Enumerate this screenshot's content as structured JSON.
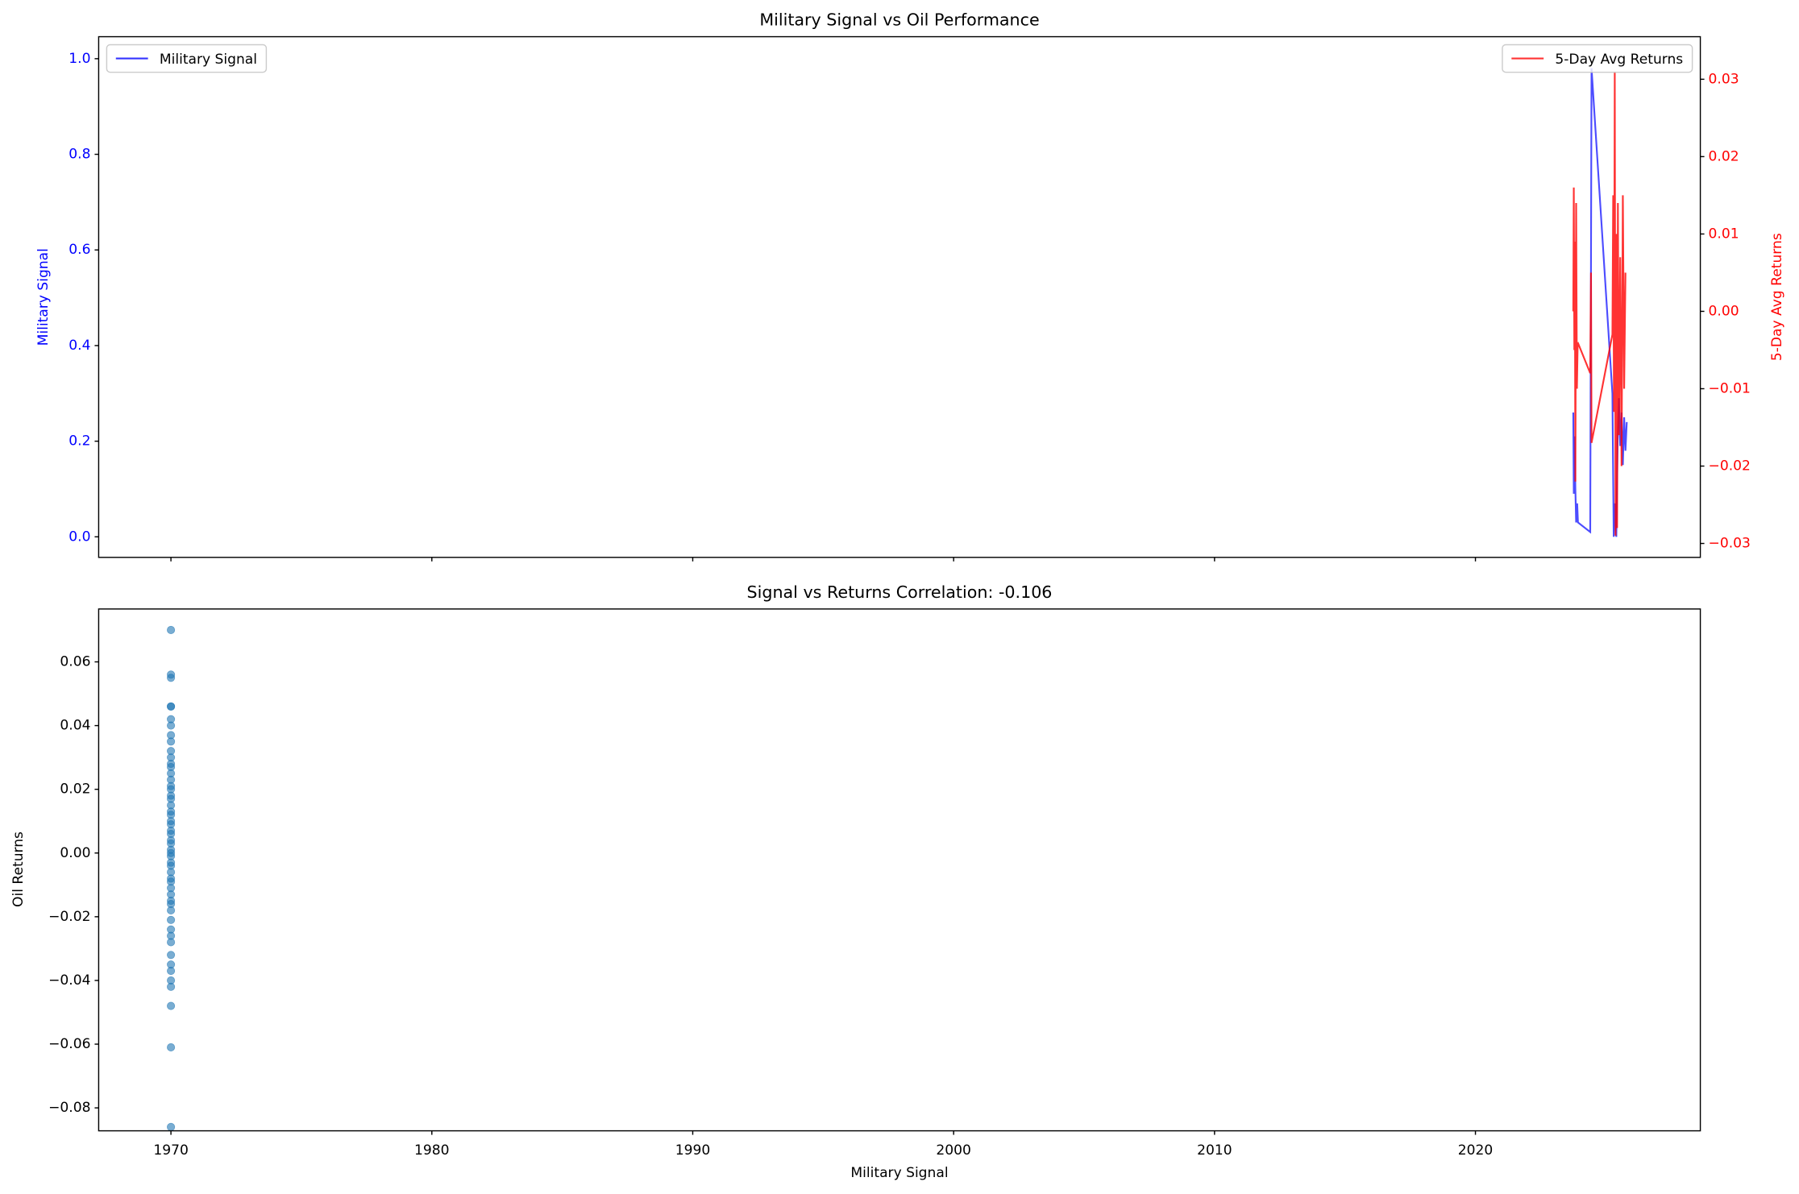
{
  "chart_data": [
    {
      "type": "line",
      "title": "Military Signal vs Oil Performance",
      "ylabel": "Military Signal",
      "y2label": "5-Day Avg Returns",
      "xlim": [
        1967.23,
        2028.62
      ],
      "ylim": [
        -0.043,
        1.046
      ],
      "yticks": [
        {
          "value": 0,
          "label": "0.0"
        },
        0.2,
        0.4,
        0.6,
        0.8,
        {
          "value": 1,
          "label": "1.0"
        }
      ],
      "y2lim": [
        -0.0318,
        0.0355
      ],
      "y2ticks": [
        {
          "value": -0.03,
          "label": "−0.03"
        },
        {
          "value": -0.02,
          "label": "−0.02"
        },
        {
          "value": -0.01,
          "label": "−0.01"
        },
        {
          "value": 0,
          "label": "0.00"
        },
        0.01,
        0.02,
        0.03
      ],
      "series": [
        {
          "name": "Military Signal",
          "color": "#0000ff",
          "legend": "upper left",
          "x": [
            2023.75,
            2023.77,
            2023.8,
            2023.83,
            2023.86,
            2023.9,
            2023.93,
            2024.4,
            2024.45,
            2025.25,
            2025.3,
            2025.35,
            2025.4,
            2025.45,
            2025.5,
            2025.55,
            2025.6,
            2025.65,
            2025.7,
            2025.75,
            2025.8
          ],
          "values": [
            0.26,
            0.09,
            0.21,
            0.1,
            0.03,
            0.07,
            0.03,
            0.01,
            0.98,
            0.3,
            0.0,
            0.07,
            0.0,
            0.2,
            0.29,
            0.19,
            0.26,
            0.15,
            0.25,
            0.18,
            0.24
          ]
        },
        {
          "name": "5-Day Avg Returns",
          "color": "#ff0000",
          "legend": "upper right",
          "axis": "y2",
          "x": [
            2023.75,
            2023.77,
            2023.79,
            2023.81,
            2023.83,
            2023.86,
            2023.89,
            2023.92,
            2024.4,
            2024.43,
            2024.45,
            2025.25,
            2025.28,
            2025.31,
            2025.34,
            2025.37,
            2025.4,
            2025.43,
            2025.46,
            2025.5,
            2025.55,
            2025.6,
            2025.65,
            2025.7,
            2025.75
          ],
          "values": [
            0.0,
            0.016,
            -0.005,
            0.009,
            -0.022,
            0.014,
            -0.01,
            -0.004,
            -0.008,
            0.005,
            -0.017,
            -0.003,
            0.015,
            -0.013,
            0.031,
            -0.029,
            0.01,
            -0.028,
            0.014,
            -0.016,
            0.007,
            -0.02,
            0.015,
            -0.01,
            0.005
          ]
        }
      ]
    },
    {
      "type": "scatter",
      "title": "Signal vs Returns Correlation: -0.106",
      "xlabel": "Military Signal",
      "ylabel": "Oil Returns",
      "color": "#1f77b4",
      "xlim": [
        1967.23,
        2028.62
      ],
      "xticks": [
        1970,
        1980,
        1990,
        2000,
        2010,
        2020
      ],
      "ylim": [
        -0.0872,
        0.0766
      ],
      "yticks": [
        {
          "value": -0.08,
          "label": "−0.08"
        },
        {
          "value": -0.06,
          "label": "−0.06"
        },
        {
          "value": -0.04,
          "label": "−0.04"
        },
        {
          "value": -0.02,
          "label": "−0.02"
        },
        {
          "value": 0,
          "label": "0.00"
        },
        0.02,
        0.04,
        0.06
      ],
      "x": [
        1970,
        1970,
        1970,
        1970,
        1970,
        1970,
        1970,
        1970,
        1970,
        1970,
        1970,
        1970,
        1970,
        1970,
        1970,
        1970,
        1970,
        1970,
        1970,
        1970,
        1970,
        1970,
        1970,
        1970,
        1970,
        1970,
        1970,
        1970,
        1970,
        1970,
        1970,
        1970,
        1970,
        1970,
        1970,
        1970,
        1970,
        1970,
        1970,
        1970,
        1970,
        1970,
        1970,
        1970,
        1970,
        1970,
        1970,
        1970,
        1970,
        1970,
        1970,
        1970,
        1970
      ],
      "values": [
        0.07,
        0.056,
        0.055,
        0.046,
        0.046,
        0.042,
        0.04,
        0.037,
        0.035,
        0.032,
        0.03,
        0.028,
        0.027,
        0.025,
        0.023,
        0.021,
        0.02,
        0.018,
        0.017,
        0.015,
        0.013,
        0.012,
        0.01,
        0.009,
        0.007,
        0.006,
        0.004,
        0.003,
        0.001,
        0.0,
        -0.001,
        -0.003,
        -0.004,
        -0.006,
        -0.008,
        -0.009,
        -0.011,
        -0.013,
        -0.015,
        -0.016,
        -0.018,
        -0.021,
        -0.024,
        -0.026,
        -0.028,
        -0.032,
        -0.035,
        -0.037,
        -0.04,
        -0.042,
        -0.048,
        -0.061,
        -0.086
      ]
    }
  ]
}
